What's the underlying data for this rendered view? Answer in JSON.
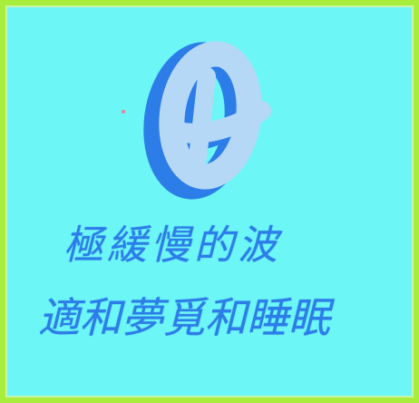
{
  "artwork": {
    "text_lines": [
      "極緩慢的波",
      "適和夢覓和睡眠"
    ],
    "colors": {
      "frame": "#a8ec3c",
      "background": "#6cf6f6",
      "ink": "#2d7de8",
      "glyph_fill": "#b6d8f7",
      "glyph_shadow": "#2d7de8",
      "spark": "#f27a9a"
    },
    "emblem_icon": "looped-theta-glyph"
  }
}
